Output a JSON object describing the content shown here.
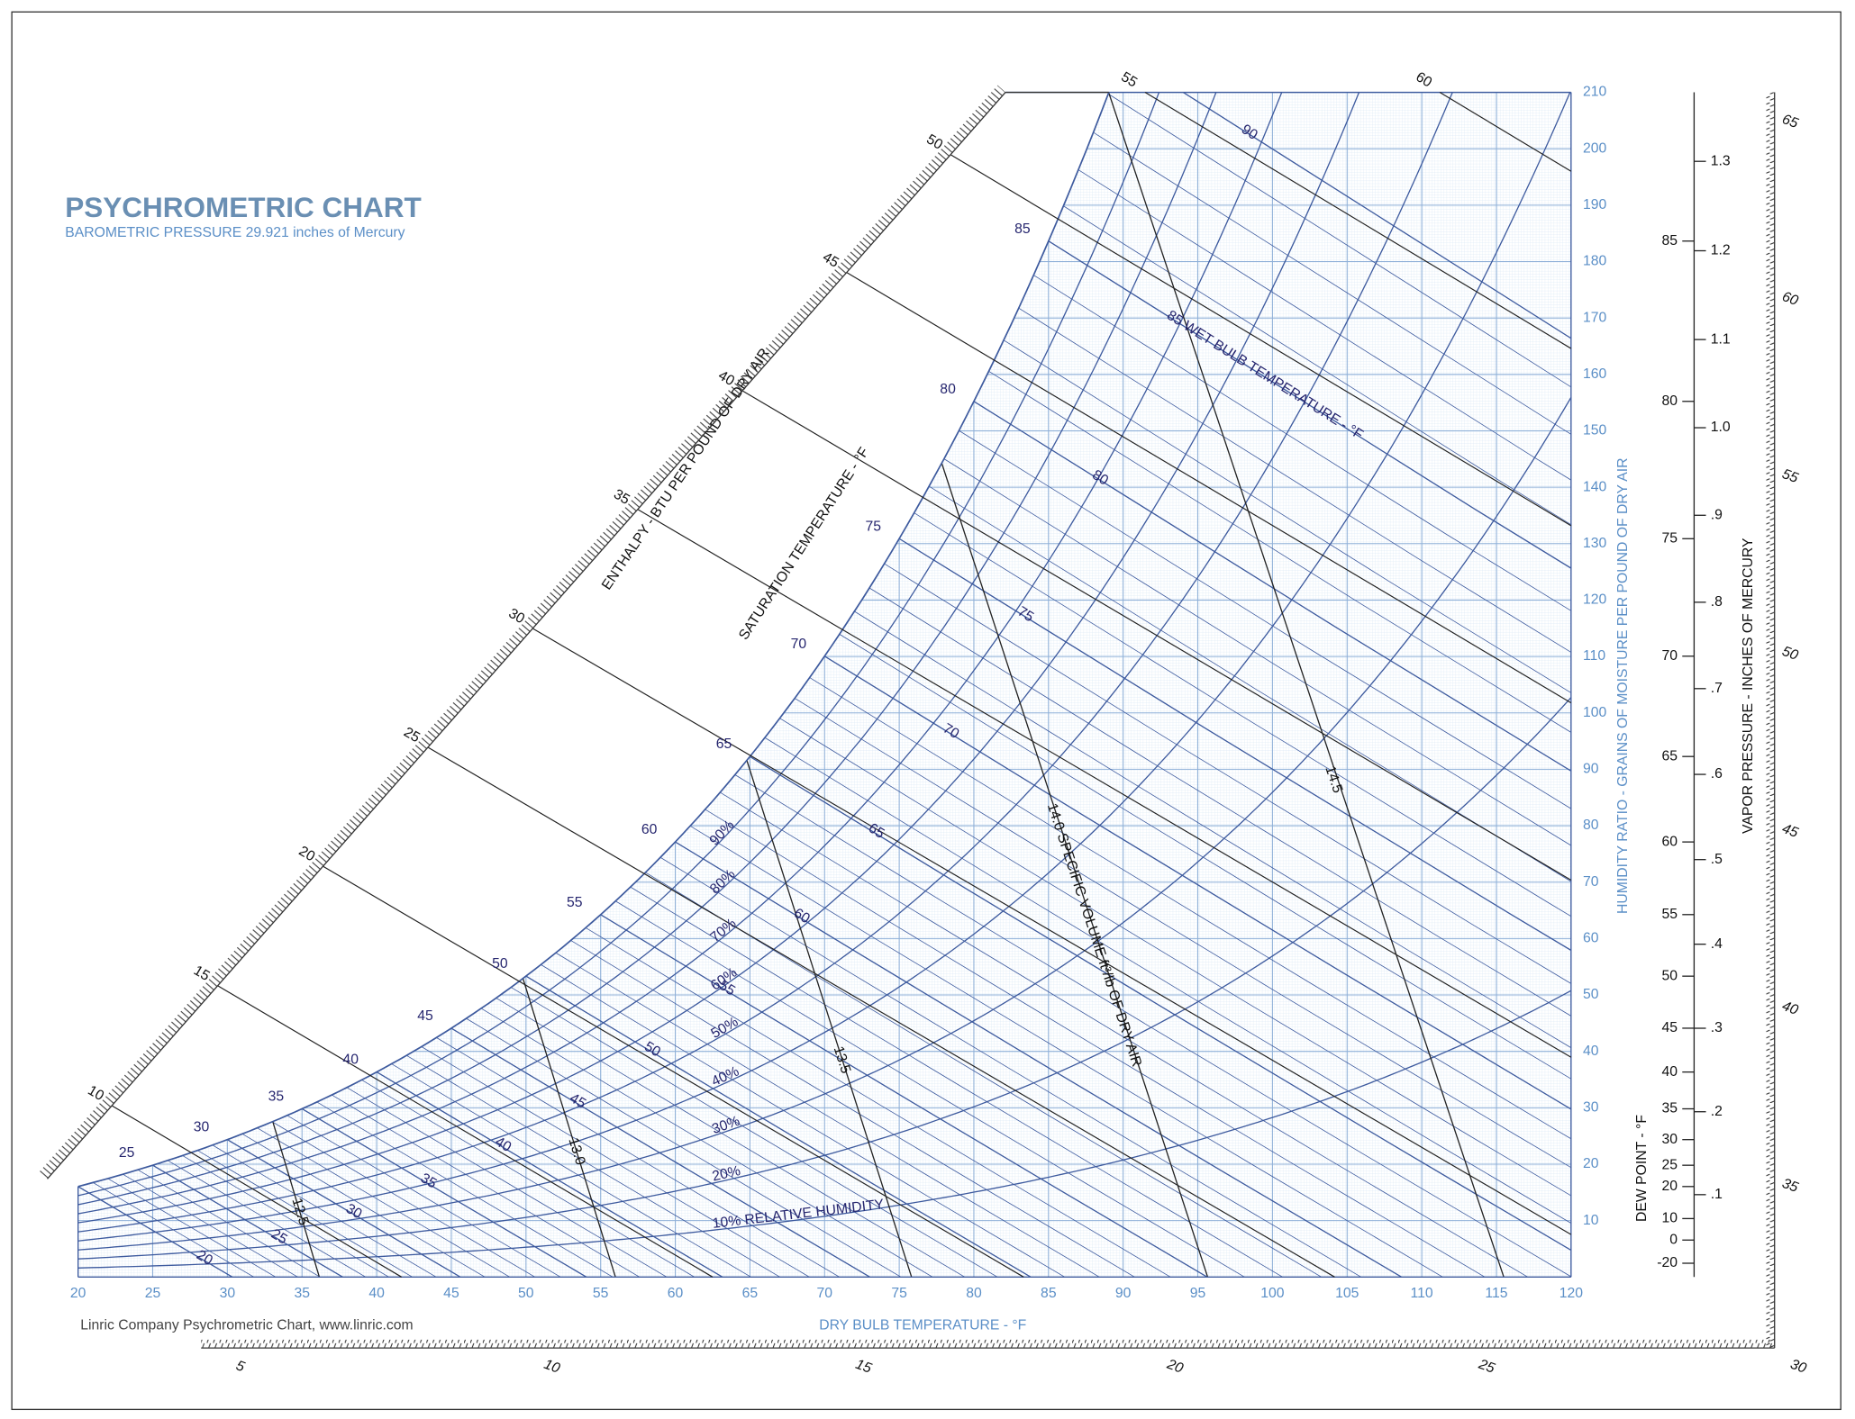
{
  "chart_data": {
    "type": "psychrometric",
    "title": "PSYCHROMETRIC CHART",
    "subtitle": "BAROMETRIC PRESSURE 29.921 inches of Mercury",
    "pressure_inhg": 29.921,
    "footer": "Linric Company Psychrometric Chart, www.linric.com",
    "x_label": "DRY BULB TEMPERATURE - °F",
    "y_label": "HUMIDITY RATIO - GRAINS OF MOISTURE PER POUND OF DRY AIR",
    "xlim": [
      20,
      120
    ],
    "xticks": [
      20,
      25,
      30,
      35,
      40,
      45,
      50,
      55,
      60,
      65,
      70,
      75,
      80,
      85,
      90,
      95,
      100,
      105,
      110,
      115,
      120
    ],
    "ylim": [
      0,
      210
    ],
    "yticks": [
      10,
      20,
      30,
      40,
      50,
      60,
      70,
      80,
      90,
      100,
      110,
      120,
      130,
      140,
      150,
      160,
      170,
      180,
      190,
      200,
      210
    ],
    "saturation": {
      "label": "SATURATION TEMPERATURE - °F",
      "ticks": [
        25,
        30,
        35,
        40,
        45,
        50,
        55,
        60,
        65,
        70,
        75,
        80,
        85
      ]
    },
    "relative_humidity": [
      {
        "value": 10,
        "label": "10% RELATIVE HUMIDITY"
      },
      {
        "value": 20,
        "label": "20%"
      },
      {
        "value": 30,
        "label": "30%"
      },
      {
        "value": 40,
        "label": "40%"
      },
      {
        "value": 50,
        "label": "50%"
      },
      {
        "value": 60,
        "label": "60%"
      },
      {
        "value": 70,
        "label": "70%"
      },
      {
        "value": 80,
        "label": "80%"
      },
      {
        "value": 90,
        "label": "90%"
      }
    ],
    "wet_bulb": [
      20,
      25,
      30,
      35,
      40,
      45,
      50,
      55,
      60,
      65,
      70,
      75,
      80,
      {
        "value": 85,
        "label": "85 WET BULB TEMPERATURE - °F"
      },
      90
    ],
    "specific_volume": [
      12.5,
      {
        "value": 13,
        "label": "13.0"
      },
      13.5,
      {
        "value": 14,
        "label": "14.0 SPECIFIC VOLUME ft³/lb OF DRY AIR"
      },
      14.5
    ],
    "enthalpy": {
      "label": "ENTHALPY - BTU PER POUND OF DRY AIR",
      "ticks": [
        10,
        15,
        20,
        25,
        30,
        35,
        40,
        45,
        50,
        55,
        60
      ]
    },
    "dew_point": {
      "label": "DEW POINT - °F",
      "ticks": [
        -20,
        0,
        10,
        20,
        25,
        30,
        35,
        40,
        45,
        50,
        55,
        60,
        65,
        70,
        75,
        80,
        85
      ]
    },
    "vapor_pressure": {
      "label": "VAPOR PRESSURE - INCHES OF MERCURY",
      "ticks": [
        {
          "value": 0.1,
          "label": ".1"
        },
        {
          "value": 0.2,
          "label": ".2"
        },
        {
          "value": 0.3,
          "label": ".3"
        },
        {
          "value": 0.4,
          "label": ".4"
        },
        {
          "value": 0.5,
          "label": ".5"
        },
        {
          "value": 0.6,
          "label": ".6"
        },
        {
          "value": 0.7,
          "label": ".7"
        },
        {
          "value": 0.8,
          "label": ".8"
        },
        {
          "value": 0.9,
          "label": ".9"
        },
        {
          "value": 1,
          "label": "1.0"
        },
        1.1,
        1.2,
        1.3
      ]
    },
    "bottom_scale": {
      "lim": [
        5,
        30
      ],
      "ticks": [
        5,
        10,
        15,
        20,
        25,
        30
      ]
    },
    "right_scale": {
      "lim": [
        30,
        65
      ],
      "ticks": [
        35,
        40,
        45,
        50,
        55,
        60,
        65
      ]
    }
  }
}
